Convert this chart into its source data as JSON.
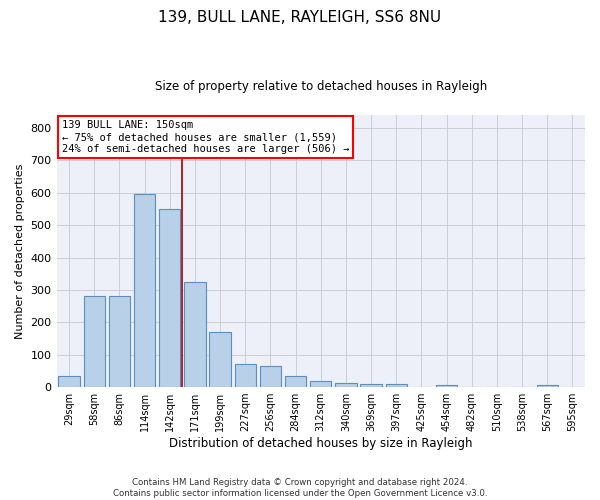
{
  "title1": "139, BULL LANE, RAYLEIGH, SS6 8NU",
  "title2": "Size of property relative to detached houses in Rayleigh",
  "xlabel": "Distribution of detached houses by size in Rayleigh",
  "ylabel": "Number of detached properties",
  "categories": [
    "29sqm",
    "58sqm",
    "86sqm",
    "114sqm",
    "142sqm",
    "171sqm",
    "199sqm",
    "227sqm",
    "256sqm",
    "284sqm",
    "312sqm",
    "340sqm",
    "369sqm",
    "397sqm",
    "425sqm",
    "454sqm",
    "482sqm",
    "510sqm",
    "538sqm",
    "567sqm",
    "595sqm"
  ],
  "values": [
    35,
    280,
    280,
    595,
    550,
    325,
    170,
    70,
    65,
    35,
    20,
    12,
    8,
    8,
    0,
    7,
    0,
    0,
    0,
    7,
    0
  ],
  "bar_color": "#b8d0e8",
  "bar_edge_color": "#5a8fbf",
  "grid_color": "#c8c8d0",
  "background_color": "#edf0f8",
  "vline_x": 4.5,
  "vline_color": "#aa0000",
  "annotation_line1": "139 BULL LANE: 150sqm",
  "annotation_line2": "← 75% of detached houses are smaller (1,559)",
  "annotation_line3": "24% of semi-detached houses are larger (506) →",
  "annotation_box_color": "red",
  "footer": "Contains HM Land Registry data © Crown copyright and database right 2024.\nContains public sector information licensed under the Open Government Licence v3.0.",
  "ylim": [
    0,
    840
  ],
  "yticks": [
    0,
    100,
    200,
    300,
    400,
    500,
    600,
    700,
    800
  ],
  "title1_fontsize": 11,
  "title2_fontsize": 9
}
